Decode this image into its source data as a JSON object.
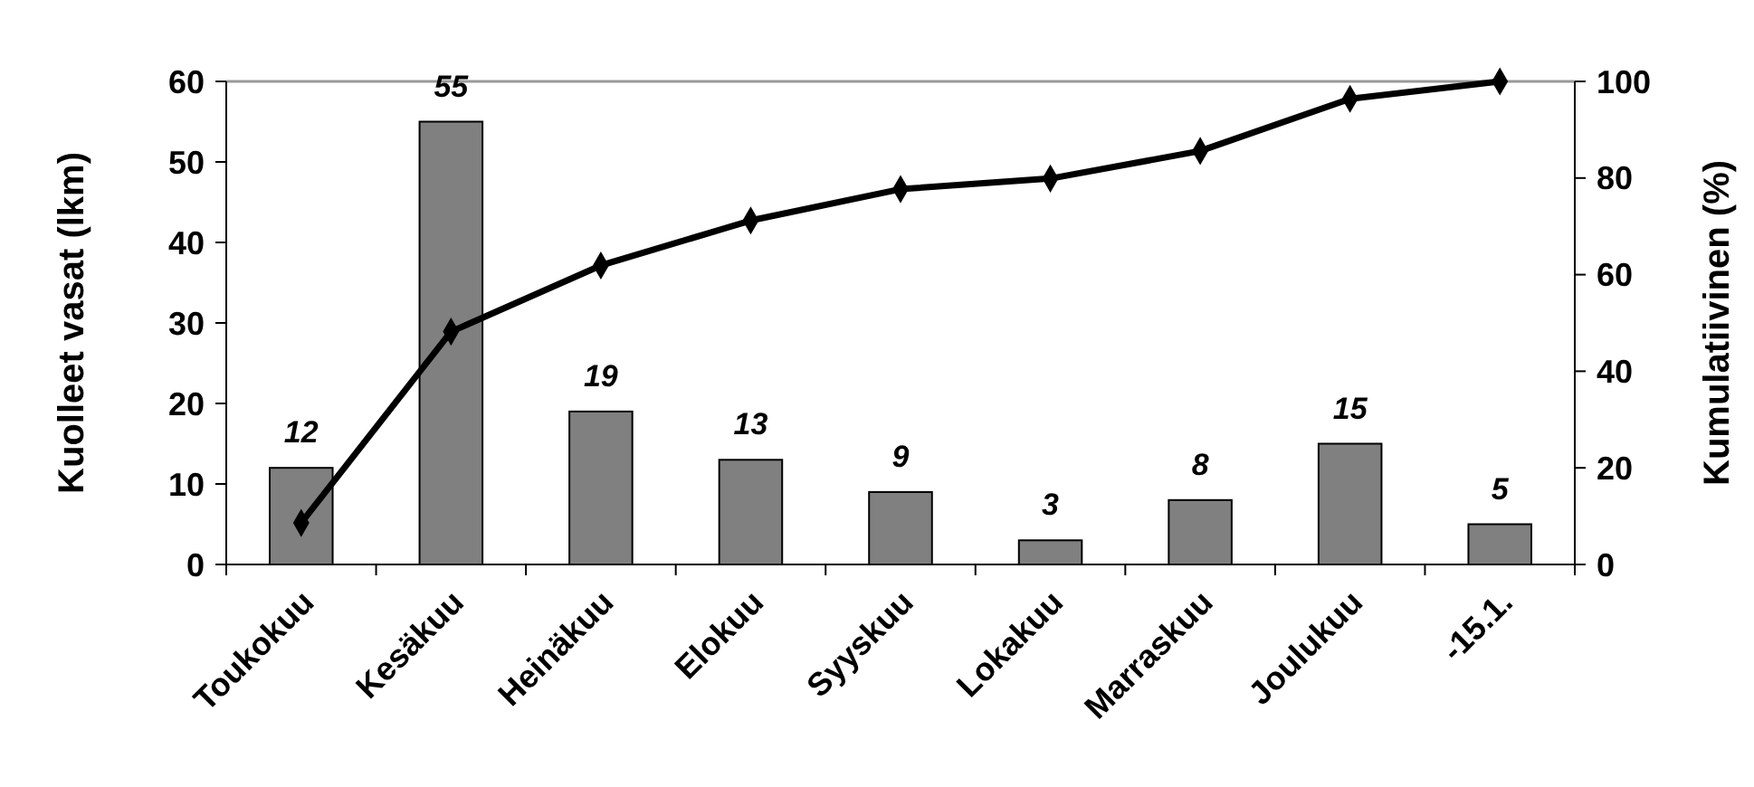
{
  "chart_data": {
    "type": "bar",
    "ylabel": "Kuolleet vasat (lkm)",
    "y2label": "Kumulatiivinen (%)",
    "categories": [
      "Toukokuu",
      "Kesäkuu",
      "Heinäkuu",
      "Elokuu",
      "Syyskuu",
      "Lokakuu",
      "Marraskuu",
      "Joulukuu",
      "-15.1."
    ],
    "series": [
      {
        "color": "#808080",
        "values": [
          12,
          55,
          19,
          13,
          9,
          3,
          8,
          15,
          5
        ],
        "data_labels": true
      },
      {
        "type": "line",
        "axis": "y2",
        "color": "#000000",
        "marker": "diamond",
        "values": [
          8.6,
          48.2,
          61.9,
          71.2,
          77.7,
          79.9,
          85.6,
          96.4,
          100
        ]
      }
    ],
    "ylim": [
      0,
      60
    ],
    "yticks": [
      0,
      10,
      20,
      30,
      40,
      50,
      60
    ],
    "y2lim": [
      0,
      100
    ],
    "y2ticks": [
      0,
      20,
      40,
      60,
      80,
      100
    ],
    "grid": false
  }
}
